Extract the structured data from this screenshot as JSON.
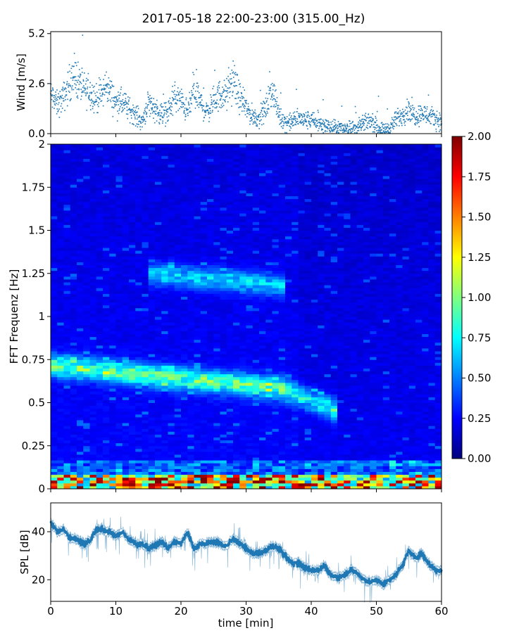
{
  "title": "2017-05-18 22:00-23:00 (315.00_Hz)",
  "chart_data": [
    {
      "panel": "wind",
      "type": "scatter",
      "ylabel": "Wind [m/s]",
      "xlim": [
        0,
        60
      ],
      "ylim": [
        0,
        5.3
      ],
      "yticks": [
        0.0,
        2.6,
        5.2
      ],
      "ytick_labels": [
        "0.0",
        "2.6",
        "5.2"
      ],
      "color": "#1f77b4",
      "profile": [
        [
          0,
          2.0
        ],
        [
          1,
          1.5
        ],
        [
          2,
          1.9
        ],
        [
          3,
          2.7
        ],
        [
          4,
          2.9
        ],
        [
          5,
          2.3
        ],
        [
          6,
          2.2
        ],
        [
          7,
          1.8
        ],
        [
          8,
          2.1
        ],
        [
          8.6,
          2.6
        ],
        [
          9,
          2.2
        ],
        [
          10,
          1.6
        ],
        [
          11,
          1.6
        ],
        [
          12,
          1.3
        ],
        [
          13,
          1.0
        ],
        [
          14,
          0.6
        ],
        [
          15,
          1.6
        ],
        [
          16,
          1.3
        ],
        [
          17,
          1.0
        ],
        [
          18,
          1.1
        ],
        [
          19,
          1.9
        ],
        [
          20,
          1.7
        ],
        [
          21,
          1.1
        ],
        [
          22,
          2.2
        ],
        [
          23,
          1.6
        ],
        [
          24,
          1.1
        ],
        [
          25,
          1.7
        ],
        [
          26,
          2.0
        ],
        [
          27,
          2.0
        ],
        [
          28,
          2.8
        ],
        [
          29,
          1.9
        ],
        [
          30,
          1.3
        ],
        [
          31,
          0.9
        ],
        [
          32,
          0.8
        ],
        [
          33,
          1.3
        ],
        [
          34,
          2.3
        ],
        [
          35,
          1.0
        ],
        [
          36,
          0.6
        ],
        [
          37,
          0.6
        ],
        [
          38,
          0.8
        ],
        [
          39,
          0.7
        ],
        [
          40,
          0.7
        ],
        [
          41,
          0.5
        ],
        [
          42,
          0.5
        ],
        [
          43,
          0.3
        ],
        [
          44,
          0.3
        ],
        [
          45,
          0.3
        ],
        [
          46,
          0.3
        ],
        [
          47,
          0.3
        ],
        [
          48,
          0.5
        ],
        [
          49,
          0.7
        ],
        [
          50,
          0.4
        ],
        [
          51,
          0.2
        ],
        [
          52,
          0.3
        ],
        [
          53,
          0.7
        ],
        [
          54,
          1.0
        ],
        [
          55,
          1.3
        ],
        [
          56,
          0.9
        ],
        [
          57,
          1.1
        ],
        [
          58,
          0.9
        ],
        [
          59,
          0.8
        ],
        [
          60,
          0.6
        ]
      ]
    },
    {
      "panel": "spectrogram",
      "type": "heatmap",
      "ylabel": "FFT Frequenz [Hz]",
      "xlim": [
        0,
        60
      ],
      "ylim": [
        0,
        2
      ],
      "yticks": [
        0,
        0.25,
        0.5,
        0.75,
        1,
        1.25,
        1.5,
        1.75,
        2
      ],
      "ytick_labels": [
        "0",
        "0.25",
        "0.5",
        "0.75",
        "1",
        "1.25",
        "1.5",
        "1.75",
        "2"
      ],
      "colormap": "jet",
      "color_range": [
        0.0,
        2.0
      ],
      "colorbar_ticks": [
        "0.00",
        "0.25",
        "0.50",
        "0.75",
        "1.00",
        "1.25",
        "1.50",
        "1.75",
        "2.00"
      ],
      "features": [
        {
          "kind": "band",
          "x": [
            0,
            36
          ],
          "y": [
            0.72,
            0.58
          ],
          "level": 0.75
        },
        {
          "kind": "band",
          "x": [
            36,
            44
          ],
          "y": [
            0.58,
            0.45
          ],
          "level": 0.6
        },
        {
          "kind": "band",
          "x": [
            15,
            36
          ],
          "y": [
            1.25,
            1.18
          ],
          "level": 0.5
        },
        {
          "kind": "lowfreq",
          "y": [
            0,
            0.08
          ],
          "level": 1.4
        }
      ]
    },
    {
      "panel": "spl",
      "type": "line",
      "ylabel": "SPL [dB]",
      "xlabel": "time [min]",
      "xlim": [
        0,
        60
      ],
      "ylim": [
        11,
        52
      ],
      "yticks": [
        20,
        40
      ],
      "ytick_labels": [
        "20",
        "40"
      ],
      "xticks": [
        0,
        10,
        20,
        30,
        40,
        50,
        60
      ],
      "xtick_labels": [
        "0",
        "10",
        "20",
        "30",
        "40",
        "50",
        "60"
      ],
      "color": "#1f77b4",
      "profile": [
        [
          0,
          44
        ],
        [
          1,
          40
        ],
        [
          2,
          41
        ],
        [
          3,
          37
        ],
        [
          4,
          37
        ],
        [
          5,
          35
        ],
        [
          6,
          36
        ],
        [
          7,
          41
        ],
        [
          8,
          41
        ],
        [
          9,
          40
        ],
        [
          10,
          38
        ],
        [
          11,
          40
        ],
        [
          12,
          37
        ],
        [
          13,
          35
        ],
        [
          14,
          35
        ],
        [
          15,
          33
        ],
        [
          16,
          34
        ],
        [
          17,
          36
        ],
        [
          18,
          33
        ],
        [
          19,
          36
        ],
        [
          20,
          35
        ],
        [
          21,
          40
        ],
        [
          22,
          33
        ],
        [
          23,
          35
        ],
        [
          24,
          35
        ],
        [
          25,
          36
        ],
        [
          26,
          35
        ],
        [
          27,
          34
        ],
        [
          28,
          37
        ],
        [
          29,
          35
        ],
        [
          30,
          33
        ],
        [
          31,
          31
        ],
        [
          32,
          31
        ],
        [
          33,
          32
        ],
        [
          34,
          34
        ],
        [
          35,
          33
        ],
        [
          36,
          30
        ],
        [
          37,
          27
        ],
        [
          38,
          27
        ],
        [
          39,
          25
        ],
        [
          40,
          24
        ],
        [
          41,
          24
        ],
        [
          42,
          26
        ],
        [
          43,
          22
        ],
        [
          44,
          21
        ],
        [
          45,
          22
        ],
        [
          46,
          24
        ],
        [
          47,
          23
        ],
        [
          48,
          20
        ],
        [
          49,
          19
        ],
        [
          50,
          20
        ],
        [
          51,
          18
        ],
        [
          52,
          20
        ],
        [
          53,
          22
        ],
        [
          54,
          26
        ],
        [
          55,
          32
        ],
        [
          56,
          29
        ],
        [
          57,
          31
        ],
        [
          58,
          27
        ],
        [
          59,
          24
        ],
        [
          60,
          24
        ]
      ]
    }
  ]
}
